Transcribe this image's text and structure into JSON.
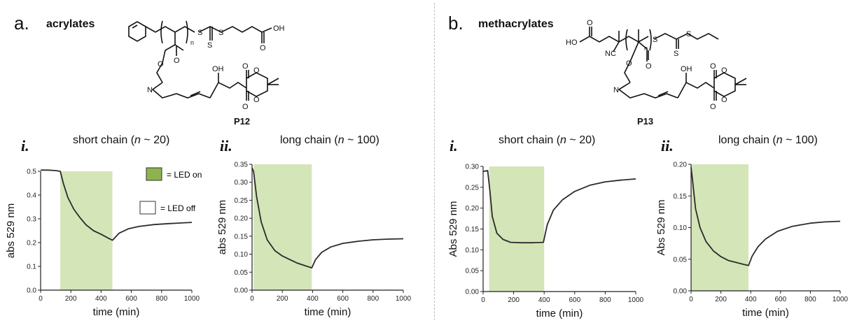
{
  "panels": [
    {
      "letter": "a.",
      "title": "acrylates",
      "compound": "P12"
    },
    {
      "letter": "b.",
      "title": "methacrylates",
      "compound": "P13"
    }
  ],
  "structure_text": {
    "S": "S",
    "n": "n",
    "OH": "OH",
    "HO": "HO",
    "O": "O",
    "N": "N",
    "NC": "NC"
  },
  "legend": {
    "on": "= LED on",
    "off": "= LED off"
  },
  "colors": {
    "led_on": "#d4e5b8",
    "led_on_legend": "#8db34e",
    "curve": "#2b2b2b"
  },
  "chart_data": [
    {
      "type": "line",
      "sub": "i.",
      "title": "short chain (n ~ 20)",
      "title_parts": [
        "short chain (",
        "n",
        " ~ 20)"
      ],
      "xlabel": "time (min)",
      "ylabel": "abs 529 nm",
      "xlim": [
        0,
        1000
      ],
      "ylim": [
        0,
        0.5
      ],
      "xticks": [
        0,
        200,
        400,
        600,
        800,
        1000
      ],
      "xtick_labels": [
        "0",
        "200",
        "400",
        "600",
        "800",
        "1000"
      ],
      "yticks": [
        0,
        0.1,
        0.2,
        0.3,
        0.4,
        0.5
      ],
      "ytick_labels": [
        "0.0",
        "0.1",
        "0.2",
        "0.3",
        "0.4",
        "0.5"
      ],
      "led_on": [
        130,
        475
      ],
      "x": [
        0,
        50,
        100,
        130,
        150,
        180,
        220,
        260,
        300,
        350,
        400,
        450,
        475,
        520,
        580,
        650,
        750,
        850,
        1000
      ],
      "y": [
        0.505,
        0.505,
        0.503,
        0.5,
        0.45,
        0.39,
        0.34,
        0.305,
        0.275,
        0.25,
        0.235,
        0.218,
        0.21,
        0.24,
        0.258,
        0.268,
        0.276,
        0.28,
        0.285
      ]
    },
    {
      "type": "line",
      "sub": "ii.",
      "title": "long chain (n ~ 100)",
      "title_parts": [
        "long chain (",
        "n",
        " ~ 100)"
      ],
      "xlabel": "time (min)",
      "ylabel": "abs 529 nm",
      "xlim": [
        0,
        1000
      ],
      "ylim": [
        0,
        0.35
      ],
      "xticks": [
        0,
        200,
        400,
        600,
        800,
        1000
      ],
      "xtick_labels": [
        "0",
        "200",
        "400",
        "600",
        "800",
        "1000"
      ],
      "yticks": [
        0,
        0.05,
        0.1,
        0.15,
        0.2,
        0.25,
        0.3,
        0.35
      ],
      "ytick_labels": [
        "0.00",
        "0.05",
        "0.10",
        "0.15",
        "0.20",
        "0.25",
        "0.30",
        "0.35"
      ],
      "led_on": [
        10,
        395
      ],
      "x": [
        0,
        10,
        30,
        60,
        100,
        150,
        200,
        250,
        300,
        350,
        395,
        420,
        460,
        520,
        600,
        700,
        800,
        900,
        1000
      ],
      "y": [
        0.34,
        0.33,
        0.26,
        0.19,
        0.14,
        0.11,
        0.095,
        0.085,
        0.075,
        0.068,
        0.062,
        0.085,
        0.105,
        0.12,
        0.13,
        0.136,
        0.14,
        0.142,
        0.143
      ]
    },
    {
      "type": "line",
      "sub": "i.",
      "title": "short chain (n ~ 20)",
      "title_parts": [
        "short chain (",
        "n",
        " ~ 20)"
      ],
      "xlabel": "time (min)",
      "ylabel": "Abs 529 nm",
      "xlim": [
        0,
        1000
      ],
      "ylim": [
        0,
        0.3
      ],
      "xticks": [
        0,
        200,
        400,
        600,
        800,
        1000
      ],
      "xtick_labels": [
        "0",
        "200",
        "400",
        "600",
        "800",
        "1000"
      ],
      "yticks": [
        0,
        0.05,
        0.1,
        0.15,
        0.2,
        0.25,
        0.3
      ],
      "ytick_labels": [
        "0.00",
        "0.05",
        "0.10",
        "0.15",
        "0.20",
        "0.25",
        "0.30"
      ],
      "led_on": [
        40,
        400
      ],
      "x": [
        0,
        30,
        45,
        60,
        90,
        130,
        180,
        250,
        320,
        395,
        420,
        460,
        520,
        600,
        700,
        800,
        900,
        1000
      ],
      "y": [
        0.288,
        0.29,
        0.24,
        0.18,
        0.14,
        0.125,
        0.118,
        0.117,
        0.117,
        0.118,
        0.16,
        0.195,
        0.22,
        0.24,
        0.255,
        0.263,
        0.267,
        0.27
      ]
    },
    {
      "type": "line",
      "sub": "ii.",
      "title": "long chain (n ~ 100)",
      "title_parts": [
        "long chain (",
        "n",
        " ~ 100)"
      ],
      "xlabel": "time (min)",
      "ylabel": "Abs 529 nm",
      "xlim": [
        0,
        1000
      ],
      "ylim": [
        0,
        0.2
      ],
      "xticks": [
        0,
        200,
        400,
        600,
        800,
        1000
      ],
      "xtick_labels": [
        "0",
        "200",
        "400",
        "600",
        "800",
        "1000"
      ],
      "yticks": [
        0,
        0.05,
        0.1,
        0.15,
        0.2
      ],
      "ytick_labels": [
        "0.00",
        "0.05",
        "0.10",
        "0.15",
        "0.20"
      ],
      "led_on": [
        0,
        385
      ],
      "x": [
        0,
        10,
        30,
        60,
        100,
        150,
        200,
        250,
        300,
        350,
        385,
        410,
        450,
        500,
        580,
        680,
        800,
        900,
        1000
      ],
      "y": [
        0.195,
        0.175,
        0.13,
        0.1,
        0.078,
        0.063,
        0.054,
        0.048,
        0.045,
        0.042,
        0.04,
        0.055,
        0.07,
        0.082,
        0.094,
        0.102,
        0.107,
        0.109,
        0.11
      ]
    }
  ]
}
